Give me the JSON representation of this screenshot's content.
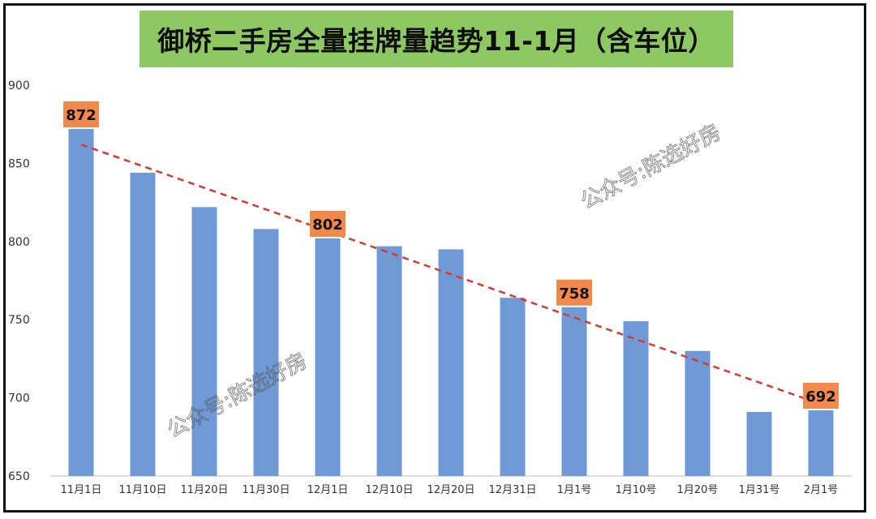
{
  "chart_data": {
    "type": "bar",
    "title": "御桥二手房全量挂牌量趋势11-1月（含车位）",
    "categories": [
      "11月1日",
      "11月10日",
      "11月20日",
      "11月30日",
      "12月1日",
      "12月10日",
      "12月20日",
      "12月31日",
      "1月1号",
      "1月10号",
      "1月20号",
      "1月31号",
      "2月1号"
    ],
    "series": [
      {
        "values": [
          872,
          844,
          822,
          808,
          802,
          797,
          795,
          764,
          758,
          749,
          730,
          691,
          692
        ]
      }
    ],
    "ylim": [
      650,
      900
    ],
    "yticks": [
      650,
      700,
      750,
      800,
      850,
      900
    ],
    "grid": false,
    "legend": "none",
    "bar_color": "#6f9ad6",
    "trendline": {
      "style": "dashed",
      "color": "#d63a2f",
      "from": 862,
      "to": 696
    },
    "callouts": [
      {
        "category_index": 0,
        "label": "872"
      },
      {
        "category_index": 4,
        "label": "802"
      },
      {
        "category_index": 8,
        "label": "758"
      },
      {
        "category_index": 12,
        "label": "692"
      }
    ],
    "callout_color": "#f0894a",
    "watermarks": [
      "公众号:陈选好房",
      "公众号:陈选好房"
    ]
  }
}
